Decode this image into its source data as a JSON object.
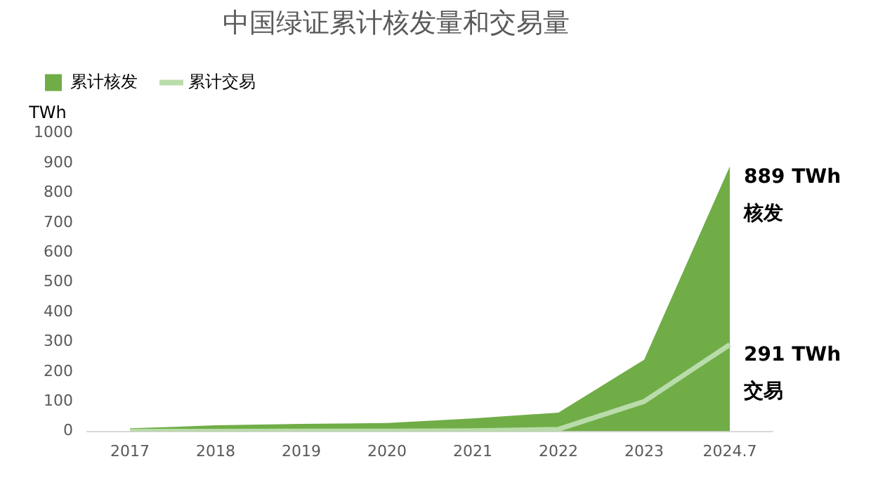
{
  "chart_data": {
    "type": "area",
    "title": "中国绿证累计核发量和交易量",
    "ylabel": "TWh",
    "categories": [
      "2017",
      "2018",
      "2019",
      "2020",
      "2021",
      "2022",
      "2023",
      "2024.7"
    ],
    "series": [
      {
        "name": "累计核发",
        "color": "#70ad47",
        "values": [
          10,
          20,
          25,
          28,
          43,
          63,
          240,
          889
        ]
      },
      {
        "name": "累计交易",
        "type": "line",
        "color": "#b9dcaa",
        "values": [
          0,
          0,
          1,
          1,
          2,
          7,
          100,
          291
        ]
      }
    ],
    "ylim": [
      0,
      1000
    ],
    "yticks": [
      0,
      100,
      200,
      300,
      400,
      500,
      600,
      700,
      800,
      900,
      1000
    ],
    "grid": false,
    "legend": "top left",
    "marker": "none",
    "annotations": [
      {
        "text": "889 TWh",
        "x": "2024.7",
        "y": 889
      },
      {
        "text": "核发",
        "x": "2024.7",
        "y": 889
      },
      {
        "text": "291 TWh",
        "x": "2024.7",
        "y": 291
      },
      {
        "text": "交易",
        "x": "2024.7",
        "y": 291
      }
    ]
  }
}
